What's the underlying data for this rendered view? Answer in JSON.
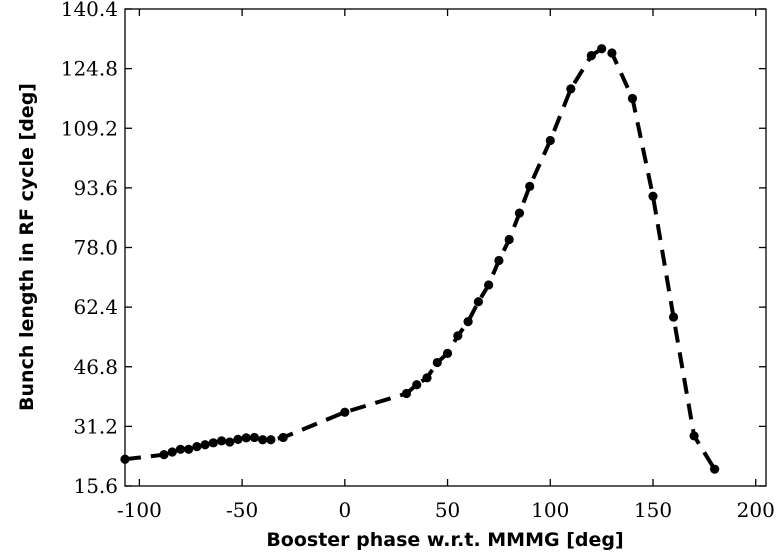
{
  "chart_data": {
    "type": "line",
    "title": "",
    "xlabel": "Booster phase w.r.t. MMMG [deg]",
    "ylabel": "Bunch length in RF cycle [deg]",
    "xlim": [
      -107,
      205
    ],
    "ylim": [
      15.6,
      140.4
    ],
    "xticks": [
      -100,
      -50,
      0,
      50,
      100,
      150,
      200
    ],
    "xtick_labels": [
      "-100",
      "-50",
      "0",
      "50",
      "100",
      "150",
      "200"
    ],
    "yticks": [
      15.6,
      31.2,
      46.8,
      62.4,
      78.0,
      93.6,
      109.2,
      124.8,
      140.4
    ],
    "ytick_labels": [
      "15.6",
      "31.2",
      "46.8",
      "62.4",
      "78.0",
      "93.6",
      "109.2",
      "124.8",
      "140.4"
    ],
    "grid": false,
    "line_style": "dashed",
    "marker": "circle",
    "color": "#000000",
    "series": [
      {
        "name": "Bunch length",
        "x": [
          -107,
          -88,
          -84,
          -80,
          -76,
          -72,
          -68,
          -64,
          -60,
          -56,
          -52,
          -48,
          -44,
          -40,
          -36,
          -30,
          0,
          30,
          35,
          40,
          45,
          50,
          55,
          60,
          65,
          70,
          75,
          80,
          85,
          90,
          100,
          110,
          120,
          125,
          130,
          140,
          150,
          160,
          170,
          180
        ],
        "y": [
          22.6,
          23.8,
          24.5,
          25.2,
          25.2,
          25.9,
          26.4,
          26.9,
          27.4,
          27.1,
          27.8,
          28.2,
          28.3,
          27.7,
          27.7,
          28.3,
          34.9,
          39.8,
          42.1,
          43.9,
          47.9,
          50.3,
          54.9,
          58.6,
          63.8,
          68.2,
          74.6,
          80.1,
          87.0,
          94.0,
          106.0,
          119.5,
          128.2,
          130.0,
          128.9,
          117.0,
          91.4,
          59.8,
          28.7,
          20.0
        ]
      }
    ]
  }
}
